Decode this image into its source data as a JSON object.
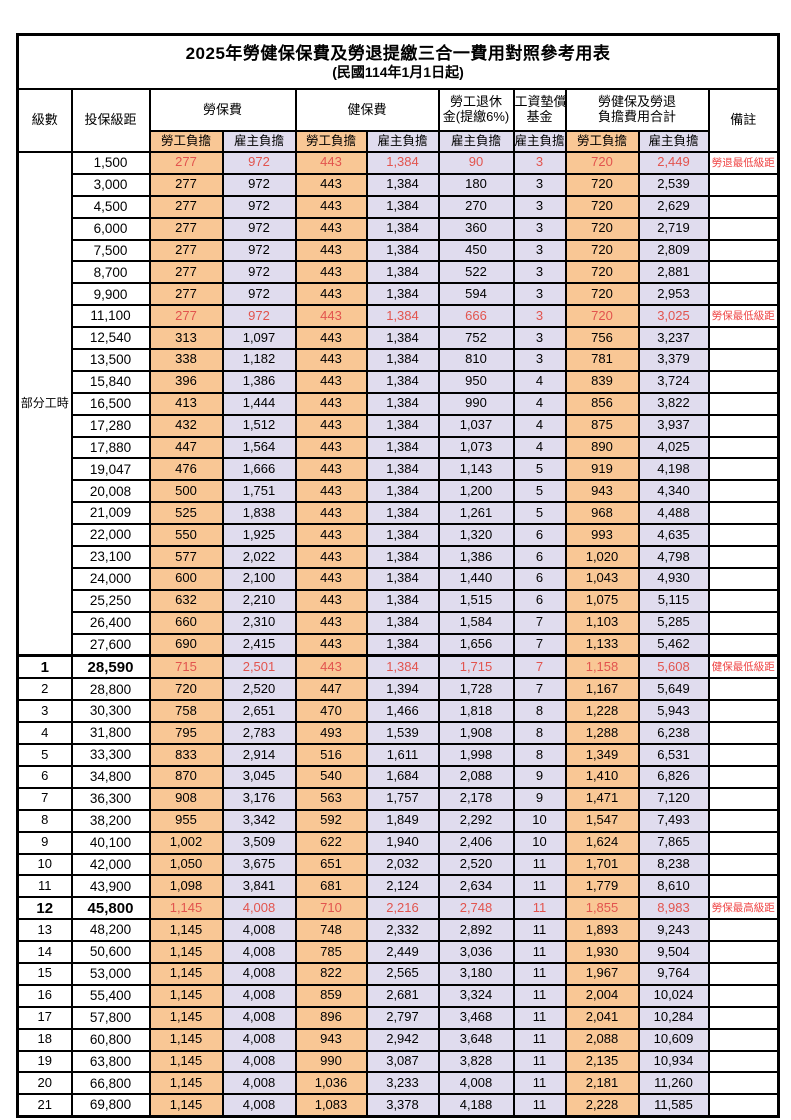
{
  "title": "2025年勞健保保費及勞退提繳三合一費用對照參考用表",
  "subtitle": "(民國114年1月1日起)",
  "colors": {
    "employee_bg": "#F9C795",
    "employer_bg": "#E0DCEE",
    "highlight_red": "#E2544E",
    "remark_red": "#EF4444"
  },
  "header": {
    "level": "級數",
    "bracket": "投保級距",
    "labor_ins": "勞保費",
    "health_ins": "健保費",
    "pension_l1": "勞工退休",
    "pension_l2": "金(提繳6%)",
    "fund_l1": "工資墊償",
    "fund_l2": "基金",
    "total_l1": "勞健保及勞退",
    "total_l2": "負擔費用合計",
    "employee": "勞工負擔",
    "employer": "雇主負擔",
    "remark": "備註"
  },
  "part_time_label": "部分工時",
  "part_time_rowspan": 23,
  "rows": [
    {
      "level": "",
      "bracket": "1,500",
      "cells": [
        "277",
        "972",
        "443",
        "1,384",
        "90",
        "3",
        "720",
        "2,449"
      ],
      "remark": "勞退最低級距",
      "hl": true
    },
    {
      "level": "",
      "bracket": "3,000",
      "cells": [
        "277",
        "972",
        "443",
        "1,384",
        "180",
        "3",
        "720",
        "2,539"
      ],
      "remark": ""
    },
    {
      "level": "",
      "bracket": "4,500",
      "cells": [
        "277",
        "972",
        "443",
        "1,384",
        "270",
        "3",
        "720",
        "2,629"
      ],
      "remark": ""
    },
    {
      "level": "",
      "bracket": "6,000",
      "cells": [
        "277",
        "972",
        "443",
        "1,384",
        "360",
        "3",
        "720",
        "2,719"
      ],
      "remark": ""
    },
    {
      "level": "",
      "bracket": "7,500",
      "cells": [
        "277",
        "972",
        "443",
        "1,384",
        "450",
        "3",
        "720",
        "2,809"
      ],
      "remark": ""
    },
    {
      "level": "",
      "bracket": "8,700",
      "cells": [
        "277",
        "972",
        "443",
        "1,384",
        "522",
        "3",
        "720",
        "2,881"
      ],
      "remark": ""
    },
    {
      "level": "",
      "bracket": "9,900",
      "cells": [
        "277",
        "972",
        "443",
        "1,384",
        "594",
        "3",
        "720",
        "2,953"
      ],
      "remark": ""
    },
    {
      "level": "",
      "bracket": "11,100",
      "cells": [
        "277",
        "972",
        "443",
        "1,384",
        "666",
        "3",
        "720",
        "3,025"
      ],
      "remark": "勞保最低級距",
      "hl": true
    },
    {
      "level": "",
      "bracket": "12,540",
      "cells": [
        "313",
        "1,097",
        "443",
        "1,384",
        "752",
        "3",
        "756",
        "3,237"
      ],
      "remark": ""
    },
    {
      "level": "",
      "bracket": "13,500",
      "cells": [
        "338",
        "1,182",
        "443",
        "1,384",
        "810",
        "3",
        "781",
        "3,379"
      ],
      "remark": ""
    },
    {
      "level": "",
      "bracket": "15,840",
      "cells": [
        "396",
        "1,386",
        "443",
        "1,384",
        "950",
        "4",
        "839",
        "3,724"
      ],
      "remark": ""
    },
    {
      "level": "",
      "bracket": "16,500",
      "cells": [
        "413",
        "1,444",
        "443",
        "1,384",
        "990",
        "4",
        "856",
        "3,822"
      ],
      "remark": ""
    },
    {
      "level": "",
      "bracket": "17,280",
      "cells": [
        "432",
        "1,512",
        "443",
        "1,384",
        "1,037",
        "4",
        "875",
        "3,937"
      ],
      "remark": ""
    },
    {
      "level": "",
      "bracket": "17,880",
      "cells": [
        "447",
        "1,564",
        "443",
        "1,384",
        "1,073",
        "4",
        "890",
        "4,025"
      ],
      "remark": ""
    },
    {
      "level": "",
      "bracket": "19,047",
      "cells": [
        "476",
        "1,666",
        "443",
        "1,384",
        "1,143",
        "5",
        "919",
        "4,198"
      ],
      "remark": ""
    },
    {
      "level": "",
      "bracket": "20,008",
      "cells": [
        "500",
        "1,751",
        "443",
        "1,384",
        "1,200",
        "5",
        "943",
        "4,340"
      ],
      "remark": ""
    },
    {
      "level": "",
      "bracket": "21,009",
      "cells": [
        "525",
        "1,838",
        "443",
        "1,384",
        "1,261",
        "5",
        "968",
        "4,488"
      ],
      "remark": ""
    },
    {
      "level": "",
      "bracket": "22,000",
      "cells": [
        "550",
        "1,925",
        "443",
        "1,384",
        "1,320",
        "6",
        "993",
        "4,635"
      ],
      "remark": ""
    },
    {
      "level": "",
      "bracket": "23,100",
      "cells": [
        "577",
        "2,022",
        "443",
        "1,384",
        "1,386",
        "6",
        "1,020",
        "4,798"
      ],
      "remark": ""
    },
    {
      "level": "",
      "bracket": "24,000",
      "cells": [
        "600",
        "2,100",
        "443",
        "1,384",
        "1,440",
        "6",
        "1,043",
        "4,930"
      ],
      "remark": ""
    },
    {
      "level": "",
      "bracket": "25,250",
      "cells": [
        "632",
        "2,210",
        "443",
        "1,384",
        "1,515",
        "6",
        "1,075",
        "5,115"
      ],
      "remark": ""
    },
    {
      "level": "",
      "bracket": "26,400",
      "cells": [
        "660",
        "2,310",
        "443",
        "1,384",
        "1,584",
        "7",
        "1,103",
        "5,285"
      ],
      "remark": ""
    },
    {
      "level": "",
      "bracket": "27,600",
      "cells": [
        "690",
        "2,415",
        "443",
        "1,384",
        "1,656",
        "7",
        "1,133",
        "5,462"
      ],
      "remark": ""
    },
    {
      "level": "1",
      "bracket": "28,590",
      "cells": [
        "715",
        "2,501",
        "443",
        "1,384",
        "1,715",
        "7",
        "1,158",
        "5,608"
      ],
      "remark": "健保最低級距",
      "hl": true,
      "boldHead": true,
      "sect": true
    },
    {
      "level": "2",
      "bracket": "28,800",
      "cells": [
        "720",
        "2,520",
        "447",
        "1,394",
        "1,728",
        "7",
        "1,167",
        "5,649"
      ],
      "remark": ""
    },
    {
      "level": "3",
      "bracket": "30,300",
      "cells": [
        "758",
        "2,651",
        "470",
        "1,466",
        "1,818",
        "8",
        "1,228",
        "5,943"
      ],
      "remark": ""
    },
    {
      "level": "4",
      "bracket": "31,800",
      "cells": [
        "795",
        "2,783",
        "493",
        "1,539",
        "1,908",
        "8",
        "1,288",
        "6,238"
      ],
      "remark": ""
    },
    {
      "level": "5",
      "bracket": "33,300",
      "cells": [
        "833",
        "2,914",
        "516",
        "1,611",
        "1,998",
        "8",
        "1,349",
        "6,531"
      ],
      "remark": ""
    },
    {
      "level": "6",
      "bracket": "34,800",
      "cells": [
        "870",
        "3,045",
        "540",
        "1,684",
        "2,088",
        "9",
        "1,410",
        "6,826"
      ],
      "remark": ""
    },
    {
      "level": "7",
      "bracket": "36,300",
      "cells": [
        "908",
        "3,176",
        "563",
        "1,757",
        "2,178",
        "9",
        "1,471",
        "7,120"
      ],
      "remark": ""
    },
    {
      "level": "8",
      "bracket": "38,200",
      "cells": [
        "955",
        "3,342",
        "592",
        "1,849",
        "2,292",
        "10",
        "1,547",
        "7,493"
      ],
      "remark": ""
    },
    {
      "level": "9",
      "bracket": "40,100",
      "cells": [
        "1,002",
        "3,509",
        "622",
        "1,940",
        "2,406",
        "10",
        "1,624",
        "7,865"
      ],
      "remark": ""
    },
    {
      "level": "10",
      "bracket": "42,000",
      "cells": [
        "1,050",
        "3,675",
        "651",
        "2,032",
        "2,520",
        "11",
        "1,701",
        "8,238"
      ],
      "remark": ""
    },
    {
      "level": "11",
      "bracket": "43,900",
      "cells": [
        "1,098",
        "3,841",
        "681",
        "2,124",
        "2,634",
        "11",
        "1,779",
        "8,610"
      ],
      "remark": ""
    },
    {
      "level": "12",
      "bracket": "45,800",
      "cells": [
        "1,145",
        "4,008",
        "710",
        "2,216",
        "2,748",
        "11",
        "1,855",
        "8,983"
      ],
      "remark": "勞保最高級距",
      "hl": true,
      "boldHead": true
    },
    {
      "level": "13",
      "bracket": "48,200",
      "cells": [
        "1,145",
        "4,008",
        "748",
        "2,332",
        "2,892",
        "11",
        "1,893",
        "9,243"
      ],
      "remark": ""
    },
    {
      "level": "14",
      "bracket": "50,600",
      "cells": [
        "1,145",
        "4,008",
        "785",
        "2,449",
        "3,036",
        "11",
        "1,930",
        "9,504"
      ],
      "remark": ""
    },
    {
      "level": "15",
      "bracket": "53,000",
      "cells": [
        "1,145",
        "4,008",
        "822",
        "2,565",
        "3,180",
        "11",
        "1,967",
        "9,764"
      ],
      "remark": ""
    },
    {
      "level": "16",
      "bracket": "55,400",
      "cells": [
        "1,145",
        "4,008",
        "859",
        "2,681",
        "3,324",
        "11",
        "2,004",
        "10,024"
      ],
      "remark": ""
    },
    {
      "level": "17",
      "bracket": "57,800",
      "cells": [
        "1,145",
        "4,008",
        "896",
        "2,797",
        "3,468",
        "11",
        "2,041",
        "10,284"
      ],
      "remark": ""
    },
    {
      "level": "18",
      "bracket": "60,800",
      "cells": [
        "1,145",
        "4,008",
        "943",
        "2,942",
        "3,648",
        "11",
        "2,088",
        "10,609"
      ],
      "remark": ""
    },
    {
      "level": "19",
      "bracket": "63,800",
      "cells": [
        "1,145",
        "4,008",
        "990",
        "3,087",
        "3,828",
        "11",
        "2,135",
        "10,934"
      ],
      "remark": ""
    },
    {
      "level": "20",
      "bracket": "66,800",
      "cells": [
        "1,145",
        "4,008",
        "1,036",
        "3,233",
        "4,008",
        "11",
        "2,181",
        "11,260"
      ],
      "remark": ""
    },
    {
      "level": "21",
      "bracket": "69,800",
      "cells": [
        "1,145",
        "4,008",
        "1,083",
        "3,378",
        "4,188",
        "11",
        "2,228",
        "11,585"
      ],
      "remark": ""
    }
  ]
}
